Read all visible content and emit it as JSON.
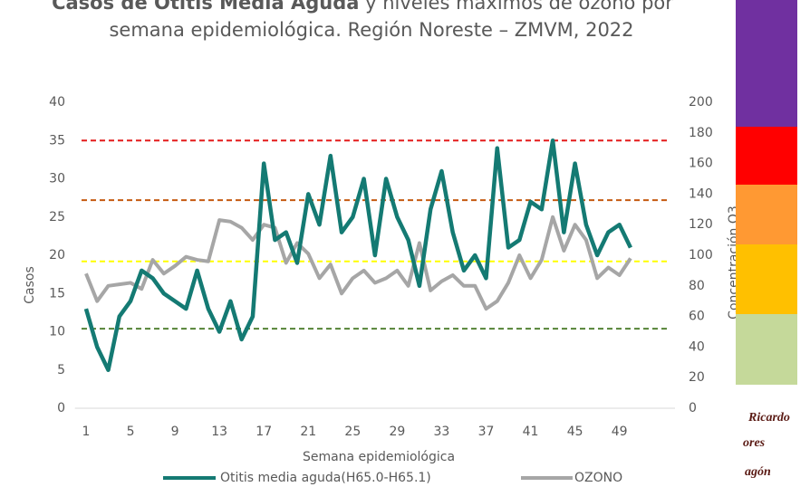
{
  "chart_data": {
    "type": "line",
    "title_bold": "Casos de Otitis Media Aguda",
    "title_rest": " y niveles máximos de ozono por",
    "subtitle": "semana epidemiológica. Región Noreste – ZMVM, 2022",
    "x_label": "Semana epidemiológica",
    "y_label": "Casos",
    "y2_label": "Concentración O3",
    "x": [
      1,
      2,
      3,
      4,
      5,
      6,
      7,
      8,
      9,
      10,
      11,
      12,
      13,
      14,
      15,
      16,
      17,
      18,
      19,
      20,
      21,
      22,
      23,
      24,
      25,
      26,
      27,
      28,
      29,
      30,
      31,
      32,
      33,
      34,
      35,
      36,
      37,
      38,
      39,
      40,
      41,
      42,
      43,
      44,
      45,
      46,
      47,
      48,
      49,
      50
    ],
    "xlim": [
      0,
      54
    ],
    "xticks": [
      1,
      5,
      9,
      13,
      17,
      21,
      25,
      29,
      33,
      37,
      41,
      45,
      49
    ],
    "ylim": [
      0,
      40
    ],
    "yticks": [
      0,
      5,
      10,
      15,
      20,
      25,
      30,
      35,
      40
    ],
    "y2lim": [
      0,
      200
    ],
    "y2ticks": [
      0,
      20,
      40,
      60,
      80,
      100,
      120,
      140,
      160,
      180,
      200
    ],
    "series": [
      {
        "name": "Otitis media aguda(H65.0-H65.1)",
        "color": "#147a73",
        "values": [
          13,
          8,
          5,
          12,
          14,
          18,
          17,
          15,
          14,
          13,
          18,
          13,
          10,
          14,
          9,
          12,
          32,
          22,
          23,
          19,
          28,
          24,
          33,
          23,
          25,
          30,
          20,
          30,
          25,
          22,
          16,
          26,
          31,
          23,
          18,
          20,
          17,
          34,
          21,
          22,
          27,
          26,
          35,
          23,
          32,
          24,
          20,
          23,
          24,
          21
        ]
      },
      {
        "name": "OZONO",
        "color": "#a6a6a6",
        "axis": "y2",
        "values": [
          88,
          70,
          80,
          81,
          82,
          78,
          97,
          88,
          93,
          99,
          97,
          96,
          123,
          122,
          118,
          110,
          120,
          118,
          95,
          108,
          101,
          85,
          94,
          75,
          85,
          90,
          82,
          85,
          90,
          80,
          108,
          77,
          83,
          87,
          80,
          80,
          65,
          70,
          82,
          100,
          85,
          97,
          125,
          103,
          120,
          110,
          85,
          92,
          87,
          98
        ]
      }
    ],
    "thresholds": [
      {
        "value": 52,
        "color": "#548235"
      },
      {
        "value": 96,
        "color": "#ffff00"
      },
      {
        "value": 136,
        "color": "#c55a11"
      },
      {
        "value": 175,
        "color": "#e41b1b"
      }
    ],
    "logo": [
      "Ricardo",
      "ores",
      "agón"
    ]
  }
}
